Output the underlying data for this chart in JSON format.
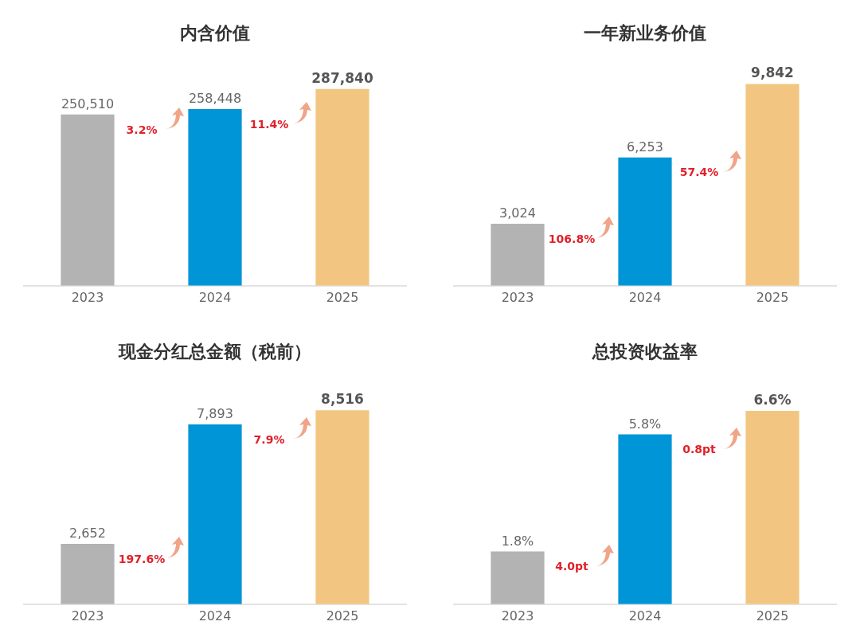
{
  "chart_data": [
    {
      "type": "bar",
      "title": "内含价值",
      "categories": [
        "2023",
        "2024",
        "2025"
      ],
      "values": [
        250510,
        258448,
        287840
      ],
      "colors": [
        "#b3b3b3",
        "#0095d6",
        "#f2c680"
      ],
      "data_labels": true,
      "value_labels": [
        "250,510",
        "258,448",
        "287,840"
      ],
      "annotations": [
        "3.2%",
        "11.4%"
      ],
      "grid": false,
      "legend": false,
      "tick_labels": "x"
    },
    {
      "type": "bar",
      "title": "一年新业务价值",
      "categories": [
        "2023",
        "2024",
        "2025"
      ],
      "values": [
        3024,
        6253,
        9842
      ],
      "colors": [
        "#b3b3b3",
        "#0095d6",
        "#f2c680"
      ],
      "data_labels": true,
      "value_labels": [
        "3,024",
        "6,253",
        "9,842"
      ],
      "annotations": [
        "106.8%",
        "57.4%"
      ],
      "grid": false,
      "legend": false,
      "tick_labels": "x"
    },
    {
      "type": "bar",
      "title": "现金分红总金额（税前）",
      "categories": [
        "2023",
        "2024",
        "2025"
      ],
      "values": [
        2652,
        7893,
        8516
      ],
      "colors": [
        "#b3b3b3",
        "#0095d6",
        "#f2c680"
      ],
      "data_labels": true,
      "value_labels": [
        "2,652",
        "7,893",
        "8,516"
      ],
      "annotations": [
        "197.6%",
        "7.9%"
      ],
      "grid": false,
      "legend": false,
      "tick_labels": "x"
    },
    {
      "type": "bar",
      "title": "总投资收益率",
      "categories": [
        "2023",
        "2024",
        "2025"
      ],
      "values": [
        1.8,
        5.8,
        6.6
      ],
      "colors": [
        "#b3b3b3",
        "#0095d6",
        "#f2c680"
      ],
      "data_labels": true,
      "value_labels": [
        "1.8%",
        "5.8%",
        "6.6%"
      ],
      "annotations": [
        "4.0pt",
        "0.8pt"
      ],
      "grid": false,
      "legend": false,
      "tick_labels": "x"
    }
  ]
}
